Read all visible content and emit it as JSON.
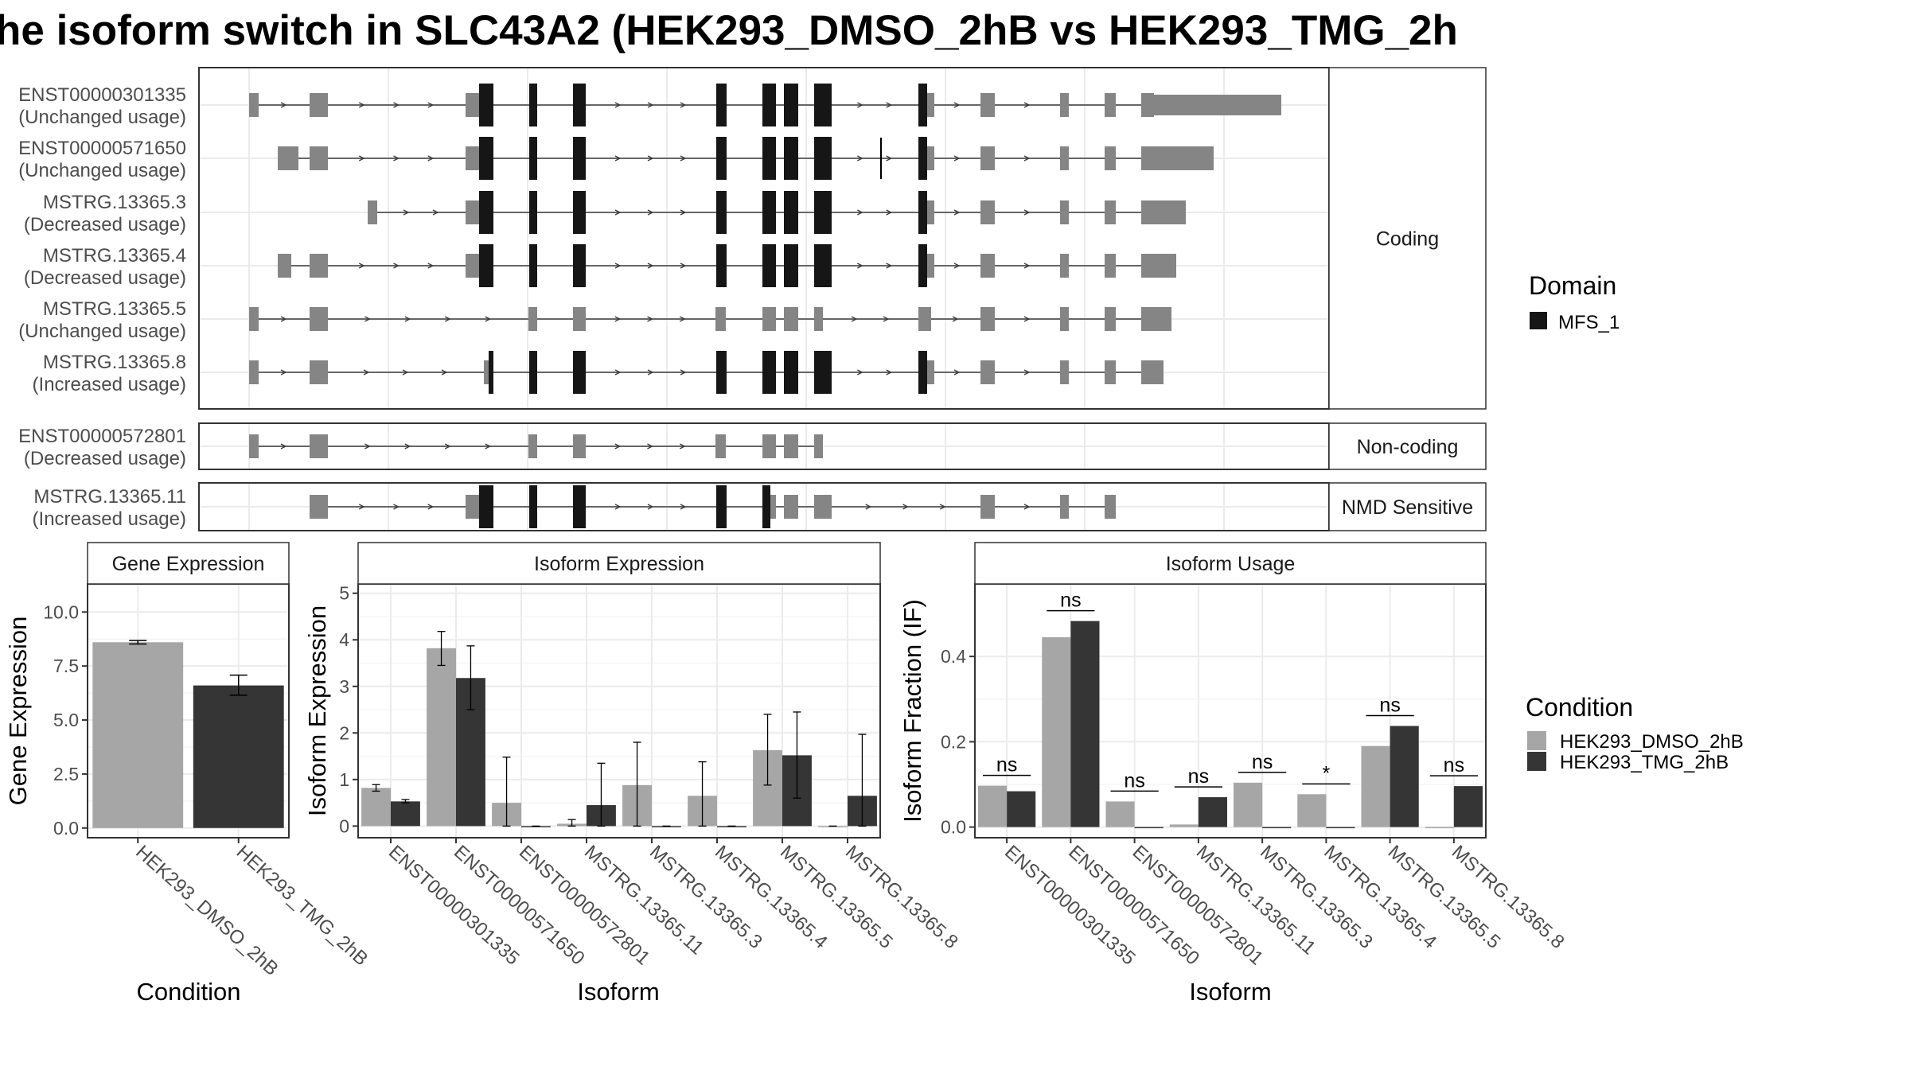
{
  "title": "he isoform switch in SLC43A2 (HEK293_DMSO_2hB vs HEK293_TMG_2h",
  "colors": {
    "dmso": "#a6a6a6",
    "tmg": "#353535",
    "domain": "#161616",
    "exon": "#858585",
    "grid": "#ebebeb",
    "strip": "#ffffff",
    "panel_border": "#333333"
  },
  "structure": {
    "groups": [
      {
        "label": "Coding",
        "transcripts": [
          {
            "id": "ENST00000301335",
            "usage": "(Unchanged usage)"
          },
          {
            "id": "ENST00000571650",
            "usage": "(Unchanged usage)"
          },
          {
            "id": "MSTRG.13365.3",
            "usage": "(Decreased usage)"
          },
          {
            "id": "MSTRG.13365.4",
            "usage": "(Decreased usage)"
          },
          {
            "id": "MSTRG.13365.5",
            "usage": "(Unchanged usage)"
          },
          {
            "id": "MSTRG.13365.8",
            "usage": "(Increased usage)"
          }
        ]
      },
      {
        "label": "Non-coding",
        "transcripts": [
          {
            "id": "ENST00000572801",
            "usage": "(Decreased usage)"
          }
        ]
      },
      {
        "label": "NMD Sensitive",
        "transcripts": [
          {
            "id": "MSTRG.13365.11",
            "usage": "(Increased usage)"
          }
        ]
      }
    ],
    "legend": {
      "title": "Domain",
      "items": [
        "MFS_1"
      ]
    }
  },
  "chart_data": [
    {
      "type": "bar",
      "panel": "Gene Expression",
      "xlabel": "Condition",
      "ylabel": "Gene Expression",
      "categories": [
        "HEK293_DMSO_2hB",
        "HEK293_TMG_2hB"
      ],
      "values": [
        8.6,
        6.6
      ],
      "errors": [
        [
          8.52,
          8.68
        ],
        [
          6.15,
          7.08
        ]
      ],
      "ylim": [
        -0.45,
        11.3
      ],
      "yticks": [
        0.0,
        2.5,
        5.0,
        7.5,
        10.0
      ],
      "ytick_labels": [
        "0.0",
        "2.5",
        "5.0",
        "7.5",
        "10.0"
      ]
    },
    {
      "type": "bar",
      "panel": "Isoform Expression",
      "xlabel": "Isoform",
      "ylabel": "Isoform Expression",
      "categories": [
        "ENST00000301335",
        "ENST00000571650",
        "ENST00000572801",
        "MSTRG.13365.11",
        "MSTRG.13365.3",
        "MSTRG.13365.4",
        "MSTRG.13365.5",
        "MSTRG.13365.8"
      ],
      "series": [
        {
          "name": "HEK293_DMSO_2hB",
          "values": [
            0.82,
            3.82,
            0.5,
            0.05,
            0.88,
            0.65,
            1.63,
            0.0
          ],
          "errors": [
            [
              0.75,
              0.89
            ],
            [
              3.45,
              4.18
            ],
            [
              0.0,
              1.48
            ],
            [
              0.0,
              0.14
            ],
            [
              0.0,
              1.8
            ],
            [
              0.0,
              1.38
            ],
            [
              0.88,
              2.4
            ],
            null
          ]
        },
        {
          "name": "HEK293_TMG_2hB",
          "values": [
            0.53,
            3.18,
            0.0,
            0.45,
            0.0,
            0.0,
            1.52,
            0.65
          ],
          "errors": [
            [
              0.5,
              0.57
            ],
            [
              2.5,
              3.87
            ],
            null,
            [
              0.0,
              1.35
            ],
            null,
            null,
            [
              0.6,
              2.45
            ],
            [
              0.0,
              1.97
            ]
          ]
        }
      ],
      "ylim": [
        -0.25,
        5.2
      ],
      "yticks": [
        0,
        1,
        2,
        3,
        4,
        5
      ],
      "ytick_labels": [
        "0",
        "1",
        "2",
        "3",
        "4",
        "5"
      ]
    },
    {
      "type": "bar",
      "panel": "Isoform Usage",
      "xlabel": "Isoform",
      "ylabel": "Isoform Fraction (IF)",
      "categories": [
        "ENST00000301335",
        "ENST00000571650",
        "ENST00000572801",
        "MSTRG.13365.11",
        "MSTRG.13365.3",
        "MSTRG.13365.4",
        "MSTRG.13365.5",
        "MSTRG.13365.8"
      ],
      "series": [
        {
          "name": "HEK293_DMSO_2hB",
          "values": [
            0.097,
            0.445,
            0.06,
            0.006,
            0.104,
            0.077,
            0.19,
            0.0
          ]
        },
        {
          "name": "HEK293_TMG_2hB",
          "values": [
            0.084,
            0.483,
            0.0,
            0.07,
            0.0,
            0.0,
            0.237,
            0.096
          ]
        }
      ],
      "significance": [
        "ns",
        "ns",
        "ns",
        "ns",
        "ns",
        "*",
        "ns",
        "ns"
      ],
      "ylim": [
        -0.025,
        0.57
      ],
      "yticks": [
        0.0,
        0.2,
        0.4
      ],
      "ytick_labels": [
        "0.0",
        "0.2",
        "0.4"
      ]
    }
  ],
  "condition_legend": {
    "title": "Condition",
    "items": [
      "HEK293_DMSO_2hB",
      "HEK293_TMG_2hB"
    ]
  }
}
